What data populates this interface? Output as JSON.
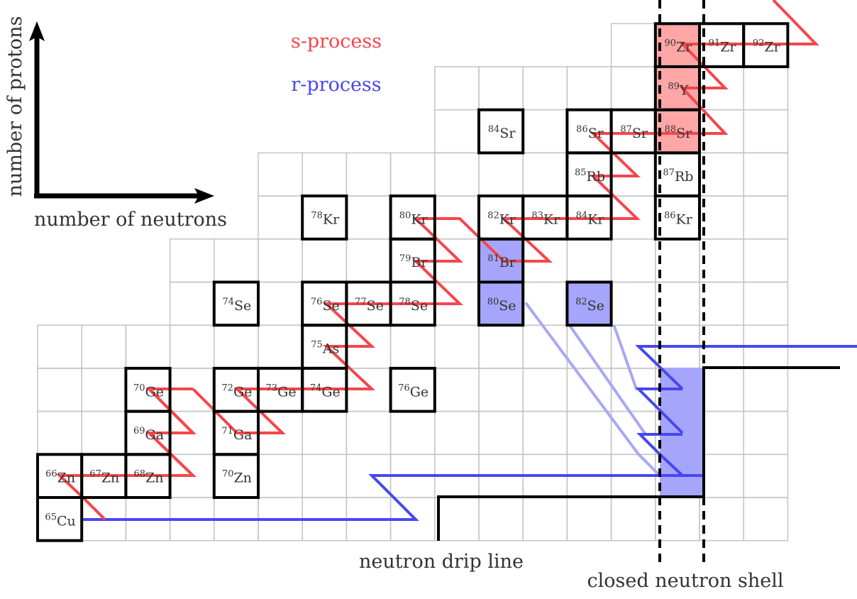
{
  "axes": {
    "y_label": "number of protons",
    "x_label": "number of neutrons"
  },
  "legend": {
    "s_process": "s-process",
    "r_process": "r-process"
  },
  "annotations": {
    "drip_line": "neutron drip line",
    "closed_shell": "closed neutron shell"
  },
  "colors": {
    "s_process": "#f5464b",
    "r_process": "#4747f0",
    "r_process_faint": "#a8a8f2",
    "s_fill": "#ffa6a6",
    "r_fill": "#a5a5fb",
    "grid": "#c4c4c4"
  },
  "nuclides": [
    {
      "mass": "65",
      "symbol": "Cu",
      "n": 36,
      "z": 29
    },
    {
      "mass": "66",
      "symbol": "Zn",
      "n": 36,
      "z": 30
    },
    {
      "mass": "67",
      "symbol": "Zn",
      "n": 37,
      "z": 30
    },
    {
      "mass": "68",
      "symbol": "Zn",
      "n": 38,
      "z": 30
    },
    {
      "mass": "70",
      "symbol": "Zn",
      "n": 40,
      "z": 30
    },
    {
      "mass": "69",
      "symbol": "Ga",
      "n": 38,
      "z": 31
    },
    {
      "mass": "71",
      "symbol": "Ga",
      "n": 40,
      "z": 31
    },
    {
      "mass": "70",
      "symbol": "Ge",
      "n": 38,
      "z": 32
    },
    {
      "mass": "72",
      "symbol": "Ge",
      "n": 40,
      "z": 32
    },
    {
      "mass": "73",
      "symbol": "Ge",
      "n": 41,
      "z": 32
    },
    {
      "mass": "74",
      "symbol": "Ge",
      "n": 42,
      "z": 32
    },
    {
      "mass": "76",
      "symbol": "Ge",
      "n": 44,
      "z": 32
    },
    {
      "mass": "75",
      "symbol": "As",
      "n": 42,
      "z": 33
    },
    {
      "mass": "74",
      "symbol": "Se",
      "n": 40,
      "z": 34
    },
    {
      "mass": "76",
      "symbol": "Se",
      "n": 42,
      "z": 34
    },
    {
      "mass": "77",
      "symbol": "Se",
      "n": 43,
      "z": 34
    },
    {
      "mass": "78",
      "symbol": "Se",
      "n": 44,
      "z": 34
    },
    {
      "mass": "80",
      "symbol": "Se",
      "n": 46,
      "z": 34,
      "fill": "r"
    },
    {
      "mass": "82",
      "symbol": "Se",
      "n": 48,
      "z": 34,
      "fill": "r"
    },
    {
      "mass": "79",
      "symbol": "Br",
      "n": 44,
      "z": 35
    },
    {
      "mass": "81",
      "symbol": "Br",
      "n": 46,
      "z": 35,
      "fill": "r"
    },
    {
      "mass": "78",
      "symbol": "Kr",
      "n": 42,
      "z": 36
    },
    {
      "mass": "80",
      "symbol": "Kr",
      "n": 44,
      "z": 36
    },
    {
      "mass": "82",
      "symbol": "Kr",
      "n": 46,
      "z": 36
    },
    {
      "mass": "83",
      "symbol": "Kr",
      "n": 47,
      "z": 36
    },
    {
      "mass": "84",
      "symbol": "Kr",
      "n": 48,
      "z": 36
    },
    {
      "mass": "86",
      "symbol": "Kr",
      "n": 50,
      "z": 36
    },
    {
      "mass": "85",
      "symbol": "Rb",
      "n": 48,
      "z": 37
    },
    {
      "mass": "87",
      "symbol": "Rb",
      "n": 50,
      "z": 37
    },
    {
      "mass": "84",
      "symbol": "Sr",
      "n": 46,
      "z": 38
    },
    {
      "mass": "86",
      "symbol": "Sr",
      "n": 48,
      "z": 38
    },
    {
      "mass": "87",
      "symbol": "Sr",
      "n": 49,
      "z": 38
    },
    {
      "mass": "88",
      "symbol": "Sr",
      "n": 50,
      "z": 38,
      "fill": "s"
    },
    {
      "mass": "89",
      "symbol": "Y",
      "n": 50,
      "z": 39,
      "fill": "s"
    },
    {
      "mass": "90",
      "symbol": "Zr",
      "n": 50,
      "z": 40,
      "fill": "s"
    },
    {
      "mass": "91",
      "symbol": "Zr",
      "n": 51,
      "z": 40
    },
    {
      "mass": "92",
      "symbol": "Zr",
      "n": 52,
      "z": 40
    }
  ]
}
